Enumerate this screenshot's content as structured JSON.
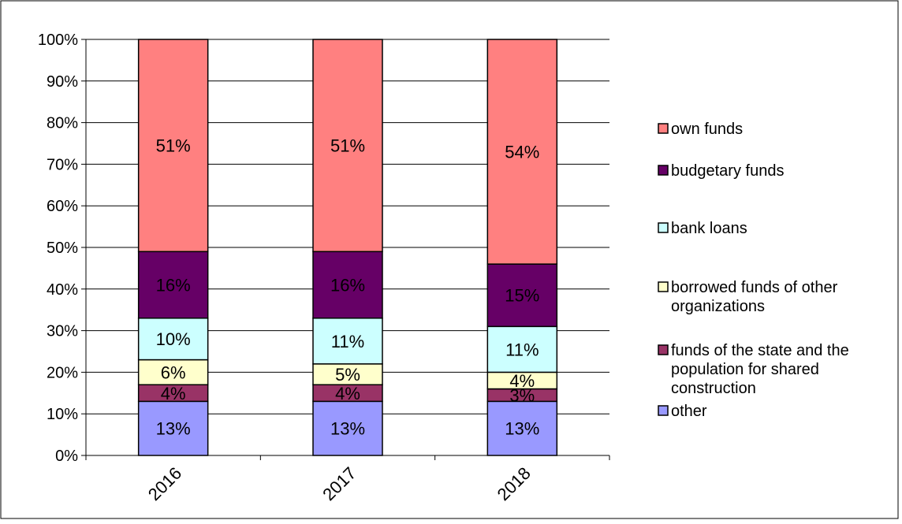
{
  "chart_data": {
    "type": "bar",
    "stacked": true,
    "percent": true,
    "categories": [
      "2016",
      "2017",
      "2018"
    ],
    "series": [
      {
        "name": "other",
        "color": "#9999ff",
        "values": [
          13,
          13,
          13
        ],
        "labels": [
          "13%",
          "13%",
          "13%"
        ]
      },
      {
        "name": "funds of the state and the population for shared construction",
        "color": "#993366",
        "values": [
          4,
          4,
          3
        ],
        "labels": [
          "4%",
          "4%",
          "3%"
        ]
      },
      {
        "name": "borrowed funds of other organizations",
        "color": "#ffffcc",
        "values": [
          6,
          5,
          4
        ],
        "labels": [
          "6%",
          "5%",
          "4%"
        ]
      },
      {
        "name": "bank loans",
        "color": "#ccffff",
        "values": [
          10,
          11,
          11
        ],
        "labels": [
          "10%",
          "11%",
          "11%"
        ]
      },
      {
        "name": "budgetary funds",
        "color": "#660066",
        "values": [
          16,
          16,
          15
        ],
        "labels": [
          "16%",
          "16%",
          "15%"
        ]
      },
      {
        "name": "own funds",
        "color": "#ff8080",
        "values": [
          51,
          51,
          54
        ],
        "labels": [
          "51%",
          "51%",
          "54%"
        ]
      }
    ],
    "legend_order": [
      "own funds",
      "budgetary funds",
      "bank loans",
      "borrowed funds of other organizations",
      "funds of the state and the population for shared construction",
      "other"
    ],
    "ylim": [
      0,
      100
    ],
    "yticks": [
      "0%",
      "10%",
      "20%",
      "30%",
      "40%",
      "50%",
      "60%",
      "70%",
      "80%",
      "90%",
      "100%"
    ],
    "grid": true,
    "legend_position": "right"
  }
}
